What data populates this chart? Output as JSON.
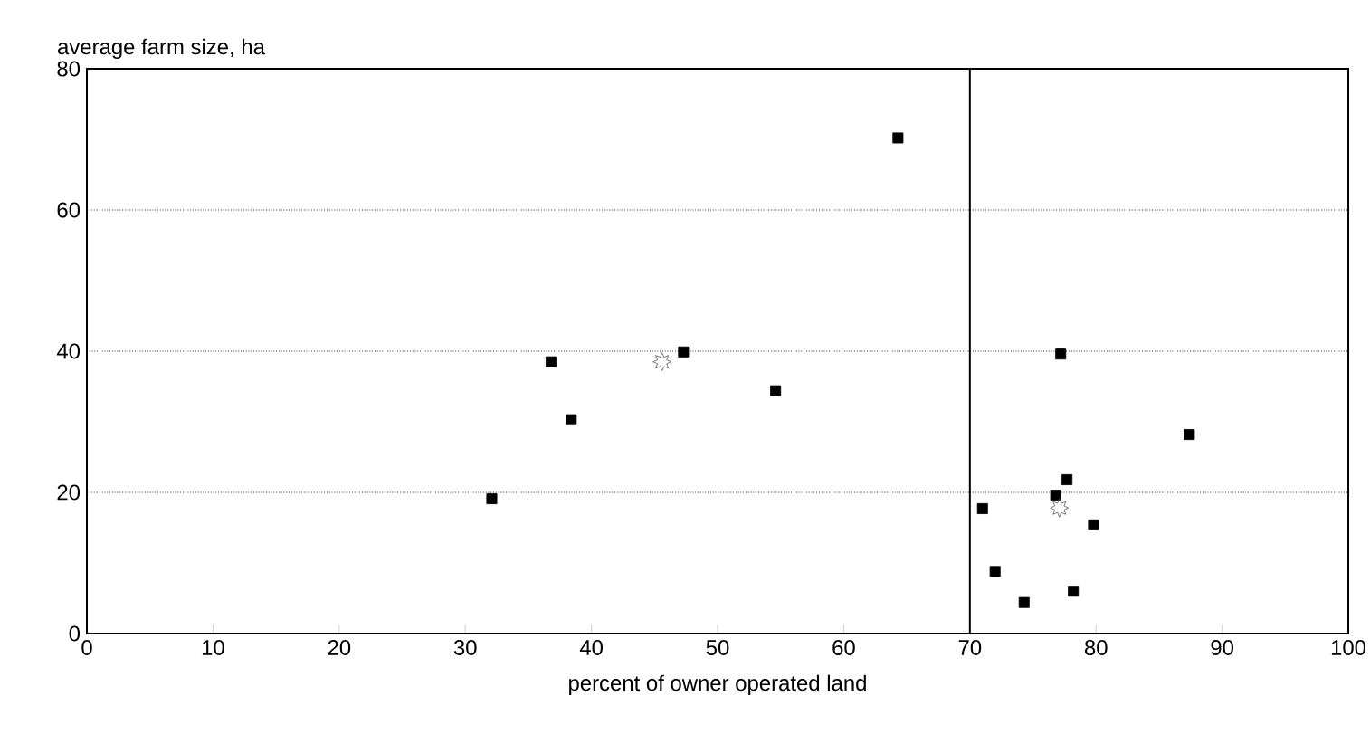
{
  "chart_data": {
    "type": "scatter",
    "xlabel": "percent of owner operated land",
    "ylabel": "average farm size, ha",
    "xlim": [
      0,
      100
    ],
    "ylim": [
      0,
      80
    ],
    "xticks": [
      0,
      10,
      20,
      30,
      40,
      50,
      60,
      70,
      80,
      90,
      100
    ],
    "yticks": [
      0,
      20,
      40,
      60,
      80
    ],
    "grid": "y",
    "series": [
      {
        "color": "#000000",
        "marker": "square",
        "x": [
          64.3,
          36.8,
          47.3,
          54.6,
          38.4,
          32.1,
          77.2,
          87.4,
          77.7,
          76.8,
          71.0,
          79.8,
          72.0,
          78.2,
          74.3
        ],
        "values": [
          70.2,
          38.5,
          39.9,
          34.4,
          30.3,
          19.1,
          39.6,
          28.2,
          21.8,
          19.6,
          17.7,
          15.4,
          8.8,
          6.0,
          4.4
        ]
      },
      {
        "color": "#555555",
        "marker": "star",
        "x": [
          45.6,
          77.1
        ],
        "values": [
          38.5,
          17.8
        ]
      }
    ],
    "ref_lines": [
      {
        "axis": "x",
        "value": 70,
        "color": "#000000"
      }
    ]
  }
}
